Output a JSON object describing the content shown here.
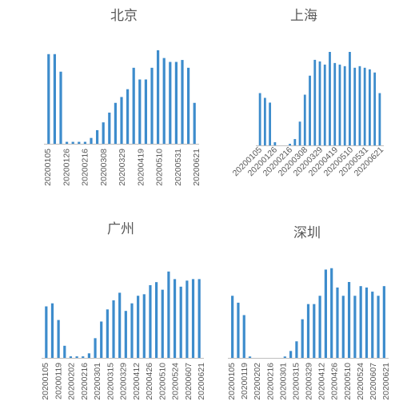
{
  "chart_data": [
    {
      "type": "bar",
      "title": "北京",
      "tick_rotation": "vertical",
      "tick_labels": [
        "20200105",
        "20200126",
        "20200216",
        "20200308",
        "20200329",
        "20200419",
        "20200510",
        "20200531",
        "20200621"
      ],
      "values": [
        46,
        46,
        37,
        1,
        1,
        1,
        1,
        3,
        7,
        11,
        16,
        21,
        24,
        28,
        39,
        33,
        33,
        39,
        48,
        44,
        42,
        42,
        43,
        39,
        21
      ],
      "ylim": [
        0,
        50
      ],
      "color": "#3d8ccc"
    },
    {
      "type": "bar",
      "title": "上海",
      "tick_rotation": "diagonal",
      "tick_labels": [
        "20200105",
        "20200126",
        "20200216",
        "20200308",
        "20200329",
        "20200419",
        "20200510",
        "20200531",
        "20200621"
      ],
      "values": [
        33,
        30,
        27,
        2,
        0,
        0,
        1,
        4,
        15,
        32,
        44,
        54,
        53,
        51,
        59,
        52,
        51,
        50,
        59,
        49,
        50,
        49,
        48,
        46,
        33
      ],
      "ylim": [
        0,
        60
      ],
      "color": "#3d8ccc"
    },
    {
      "type": "bar",
      "title": "广州",
      "tick_rotation": "vertical",
      "tick_labels": [
        "20200105",
        "20200119",
        "20200202",
        "20200216",
        "20200301",
        "20200315",
        "20200329",
        "20200412",
        "20200426",
        "20200510",
        "20200524",
        "20200607",
        "20200621"
      ],
      "values": [
        34,
        36,
        25,
        8,
        1,
        1,
        1,
        3,
        13,
        24,
        32,
        38,
        43,
        31,
        36,
        41,
        42,
        48,
        50,
        45,
        57,
        52,
        47,
        51,
        52,
        52
      ],
      "ylim": [
        0,
        58
      ],
      "color": "#3d8ccc"
    },
    {
      "type": "bar",
      "title": "深圳",
      "tick_rotation": "vertical",
      "tick_labels": [
        "20200105",
        "20200119",
        "20200202",
        "20200216",
        "20200301",
        "20200315",
        "20200329",
        "20200412",
        "20200426",
        "20200510",
        "20200524",
        "20200607",
        "20200621"
      ],
      "values": [
        45,
        40,
        31,
        1,
        0,
        0,
        0,
        0,
        0,
        1,
        5,
        12,
        28,
        39,
        39,
        45,
        64,
        65,
        51,
        45,
        55,
        45,
        52,
        51,
        48,
        45,
        52
      ],
      "ylim": [
        0,
        66
      ],
      "color": "#3d8ccc"
    }
  ]
}
